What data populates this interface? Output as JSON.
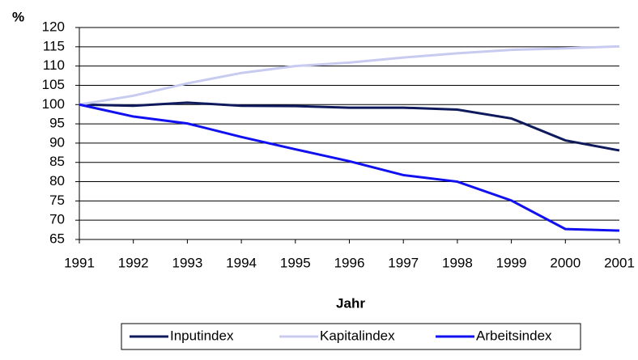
{
  "chart_data": {
    "type": "line",
    "y_label": "%",
    "x_label": "Jahr",
    "categories": [
      "1991",
      "1992",
      "1993",
      "1994",
      "1995",
      "1996",
      "1997",
      "1998",
      "1999",
      "2000",
      "2001"
    ],
    "series": [
      {
        "name": "Inputindex",
        "color": "#0f1a5c",
        "values": [
          100,
          99.7,
          100.5,
          99.7,
          99.6,
          99.2,
          99.2,
          98.7,
          96.4,
          90.7,
          88.1
        ]
      },
      {
        "name": "Kapitalindex",
        "color": "#c8cbf0",
        "values": [
          100,
          102.3,
          105.5,
          108.2,
          110,
          110.9,
          112.2,
          113.3,
          114.2,
          114.6,
          115.1
        ]
      },
      {
        "name": "Arbeitsindex",
        "color": "#1010f0",
        "values": [
          100,
          96.9,
          95.1,
          91.6,
          88.4,
          85.3,
          81.7,
          80,
          75.1,
          67.7,
          67.3
        ]
      }
    ],
    "ylim": [
      65,
      120
    ],
    "yticks": [
      65,
      70,
      75,
      80,
      85,
      90,
      95,
      100,
      105,
      110,
      115,
      120
    ],
    "grid": true,
    "legend": "bottom"
  }
}
